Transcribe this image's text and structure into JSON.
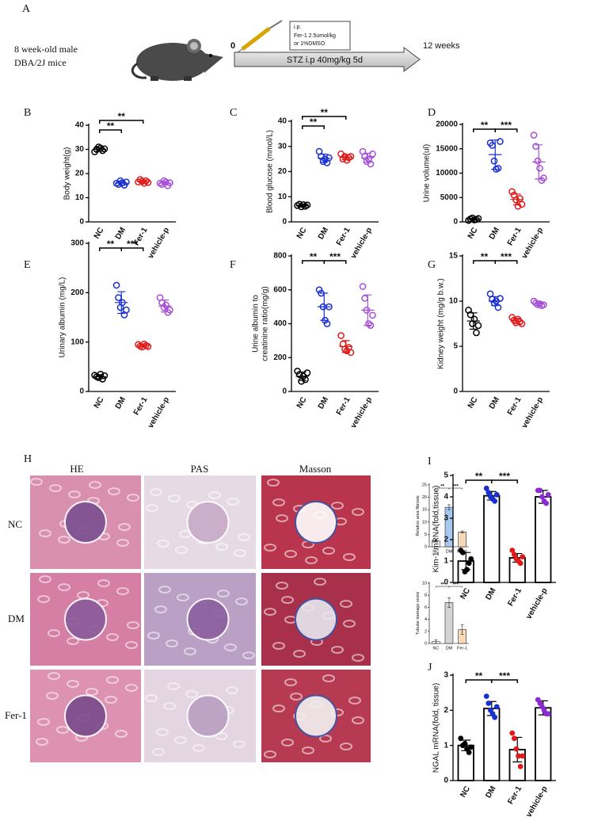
{
  "schematic": {
    "panel": "A",
    "mouse": [
      "8 week-old male",
      "DBA/2J mice"
    ],
    "start": "0",
    "end": "12 weeks",
    "treatment": [
      "i.p.",
      "Fer-1 2.5umol/kg",
      "or 1%DMSO"
    ],
    "stz": "STZ i.p 40mg/kg 5d"
  },
  "histology": {
    "panel": "H",
    "columns": [
      "HE",
      "PAS",
      "Masson"
    ],
    "rows": [
      "NC",
      "DM",
      "Fer-1"
    ]
  },
  "chart_data": [
    {
      "type": "dot",
      "panel": "B",
      "ylabel": "Body weight(g)",
      "categories": [
        "NC",
        "DM",
        "Fer-1",
        "vehicle-p"
      ],
      "colors": [
        "#000000",
        "#1a2fd0",
        "#e01a1a",
        "#a64fd6"
      ],
      "points": [
        [
          29,
          30,
          31,
          30.5,
          29.5,
          30.2
        ],
        [
          16,
          15.5,
          17,
          16.2,
          15.2,
          16.5
        ],
        [
          16.5,
          17.5,
          16.8,
          16,
          17,
          16.3
        ],
        [
          16,
          15.5,
          17,
          16.5,
          15,
          16.2
        ]
      ],
      "values": [
        30,
        16,
        16.7,
        16
      ],
      "errors": [
        0.8,
        0.8,
        0.6,
        0.8
      ],
      "ylim": [
        0,
        40
      ],
      "yticks": [
        0,
        10,
        20,
        30,
        40
      ],
      "annotations": [
        {
          "text": "**",
          "between": [
            "NC",
            "DM"
          ]
        },
        {
          "text": "**",
          "between": [
            "NC",
            "Fer-1"
          ]
        }
      ]
    },
    {
      "type": "dot",
      "panel": "C",
      "ylabel": "Blood glucose (mmol/L)",
      "categories": [
        "NC",
        "DM",
        "Fer-1",
        "vehicle-p"
      ],
      "colors": [
        "#000000",
        "#1a2fd0",
        "#e01a1a",
        "#a64fd6"
      ],
      "points": [
        [
          6.5,
          7,
          6,
          6.8,
          6.2,
          6.7
        ],
        [
          28,
          26,
          24,
          25,
          23.5,
          25.5
        ],
        [
          27,
          25,
          26,
          24.5,
          25.5,
          26
        ],
        [
          28,
          26,
          24,
          25,
          23,
          27
        ]
      ],
      "values": [
        6.5,
        25.3,
        25.7,
        25.5
      ],
      "errors": [
        0.4,
        1.6,
        0.9,
        1.8
      ],
      "ylim": [
        0,
        40
      ],
      "yticks": [
        0,
        10,
        20,
        30,
        40
      ],
      "annotations": [
        {
          "text": "**",
          "between": [
            "NC",
            "DM"
          ]
        },
        {
          "text": "**",
          "between": [
            "NC",
            "Fer-1"
          ]
        }
      ]
    },
    {
      "type": "dot",
      "panel": "D",
      "ylabel": "Urine volume(ul)",
      "categories": [
        "NC",
        "DM",
        "Fer-1",
        "vehicle-p"
      ],
      "colors": [
        "#000000",
        "#1a2fd0",
        "#e01a1a",
        "#a64fd6"
      ],
      "points": [
        [
          300,
          600,
          800,
          400,
          500,
          700
        ],
        [
          16200,
          15700,
          12500,
          10800,
          11000,
          16500
        ],
        [
          6200,
          5500,
          4500,
          3200,
          4800,
          3600
        ],
        [
          17800,
          15500,
          12500,
          11000,
          8500,
          9000
        ]
      ],
      "values": [
        550,
        13800,
        4600,
        12300
      ],
      "errors": [
        190,
        3000,
        1100,
        3500
      ],
      "ylim": [
        0,
        20000
      ],
      "yticks": [
        0,
        5000,
        10000,
        15000,
        20000
      ],
      "annotations": [
        {
          "text": "**",
          "between": [
            "NC",
            "DM"
          ]
        },
        {
          "text": "***",
          "between": [
            "DM",
            "Fer-1"
          ]
        }
      ]
    },
    {
      "type": "dot",
      "panel": "E",
      "ylabel": "Urinary albumin (mg/L)",
      "categories": [
        "NC",
        "DM",
        "Fer-1",
        "vehicle-p"
      ],
      "colors": [
        "#000000",
        "#1a2fd0",
        "#e01a1a",
        "#a64fd6"
      ],
      "points": [
        [
          33,
          30,
          28,
          35,
          25,
          32
        ],
        [
          215,
          190,
          170,
          180,
          155,
          165
        ],
        [
          95,
          92,
          90,
          96,
          93,
          91
        ],
        [
          190,
          180,
          170,
          175,
          160,
          165
        ]
      ],
      "values": [
        30,
        180,
        93,
        173
      ],
      "errors": [
        4,
        22,
        3,
        12
      ],
      "ylim": [
        0,
        300
      ],
      "yticks": [
        0,
        100,
        200,
        300
      ],
      "annotations": [
        {
          "text": "**",
          "between": [
            "NC",
            "DM"
          ]
        },
        {
          "text": "***",
          "between": [
            "DM",
            "Fer-1"
          ]
        }
      ]
    },
    {
      "type": "dot",
      "panel": "F",
      "ylabel": [
        "Urine albumin to",
        "creatinine ratio(mg/g)"
      ],
      "categories": [
        "NC",
        "DM",
        "Fer-1",
        "vehicle-p"
      ],
      "colors": [
        "#000000",
        "#1a2fd0",
        "#e01a1a",
        "#a64fd6"
      ],
      "points": [
        [
          120,
          100,
          60,
          90,
          70,
          110
        ],
        [
          600,
          580,
          500,
          420,
          400,
          500
        ],
        [
          330,
          280,
          250,
          240,
          260,
          230
        ],
        [
          620,
          550,
          480,
          400,
          390,
          450
        ]
      ],
      "values": [
        90,
        500,
        265,
        480
      ],
      "errors": [
        25,
        80,
        35,
        90
      ],
      "ylim": [
        0,
        800
      ],
      "yticks": [
        0,
        200,
        400,
        600,
        800
      ],
      "annotations": [
        {
          "text": "**",
          "between": [
            "NC",
            "DM"
          ]
        },
        {
          "text": "***",
          "between": [
            "DM",
            "Fer-1"
          ]
        }
      ]
    },
    {
      "type": "dot",
      "panel": "G",
      "ylabel": "Kidney weight (mg/g b.w.)",
      "categories": [
        "NC",
        "DM",
        "Fer-1",
        "vehicle-p"
      ],
      "colors": [
        "#000000",
        "#1a2fd0",
        "#e01a1a",
        "#a64fd6"
      ],
      "points": [
        [
          9,
          8.5,
          7.5,
          8,
          6.5,
          7.3
        ],
        [
          10.8,
          10.2,
          9.8,
          10,
          9.3,
          10.3
        ],
        [
          8.2,
          7.9,
          7.6,
          8,
          7.7,
          7.5
        ],
        [
          10,
          9.8,
          9.6,
          9.7,
          9.5,
          9.6
        ]
      ],
      "values": [
        7.8,
        10,
        7.8,
        9.7
      ],
      "errors": [
        0.9,
        0.5,
        0.3,
        0.2
      ],
      "ylim": [
        0,
        15
      ],
      "yticks": [
        0,
        5,
        10,
        15
      ],
      "annotations": [
        {
          "text": "**",
          "between": [
            "NC",
            "DM"
          ]
        },
        {
          "text": "***",
          "between": [
            "DM",
            "Fer-1"
          ]
        }
      ]
    },
    {
      "type": "bar",
      "ylabel": "Relative area fibrosis",
      "categories": [
        "NC",
        "DM",
        "Fer-1"
      ],
      "bar_colors": [
        "#ffffff",
        "#a9c8ef",
        "#f6d9b6"
      ],
      "values": [
        2.5,
        16,
        6
      ],
      "errors": [
        0.2,
        1,
        0.4
      ],
      "ylim": [
        0,
        25
      ],
      "yticks": [
        0,
        5,
        10,
        15,
        20,
        25
      ],
      "annotations": [
        {
          "text": "**",
          "between": [
            "NC",
            "DM"
          ]
        },
        {
          "text": "***",
          "between": [
            "DM",
            "Fer-1"
          ]
        }
      ]
    },
    {
      "type": "bar",
      "ylabel": "Tubular damage score",
      "categories": [
        "NC",
        "DM",
        "Fer-1"
      ],
      "bar_colors": [
        "#ffffff",
        "#d4d4d4",
        "#f6d9b6"
      ],
      "values": [
        0.3,
        6.8,
        2.3
      ],
      "errors": [
        0.3,
        0.8,
        0.8
      ],
      "ylim": [
        0,
        10
      ],
      "yticks": [
        0,
        2,
        4,
        6,
        8,
        10
      ],
      "annotations": [
        {
          "text": "**",
          "between": [
            "NC",
            "DM"
          ]
        },
        {
          "text": "***",
          "between": [
            "DM",
            "Fer-1"
          ]
        }
      ]
    },
    {
      "type": "bar",
      "panel": "I",
      "ylabel": "Kim-1 mRNA(fold,tissue)",
      "categories": [
        "NC",
        "DM",
        "Fer-1",
        "vehicle-p"
      ],
      "colors": [
        "#000000",
        "#1a2fd0",
        "#e01a1a",
        "#8a2bd6"
      ],
      "bar_colors": [
        "#ffffff",
        "#ffffff",
        "#ffffff",
        "#ffffff"
      ],
      "points": [
        [
          1.5,
          1.4,
          0.5,
          0.6,
          0.9,
          1.1
        ],
        [
          4.4,
          4.2,
          4.0,
          3.9,
          3.8,
          4.1
        ],
        [
          1.5,
          1.3,
          1.1,
          1.0,
          0.9,
          1.2
        ],
        [
          4.3,
          4.3,
          4.0,
          3.8,
          3.7,
          4.1
        ]
      ],
      "values": [
        1.0,
        4.05,
        1.15,
        4.0
      ],
      "errors": [
        0.4,
        0.2,
        0.2,
        0.3
      ],
      "ylim": [
        0,
        5
      ],
      "yticks": [
        0,
        1,
        2,
        3,
        4,
        5
      ],
      "annotations": [
        {
          "text": "**",
          "between": [
            "NC",
            "DM"
          ]
        },
        {
          "text": "***",
          "between": [
            "DM",
            "Fer-1"
          ]
        }
      ]
    },
    {
      "type": "bar",
      "panel": "J",
      "ylabel": "NGAL mRNA(fold, tissue)",
      "categories": [
        "NC",
        "DM",
        "Fer-1",
        "vehicle-p"
      ],
      "colors": [
        "#000000",
        "#1a2fd0",
        "#e01a1a",
        "#8a2bd6"
      ],
      "bar_colors": [
        "#ffffff",
        "#ffffff",
        "#ffffff",
        "#ffffff"
      ],
      "points": [
        [
          1.2,
          1.0,
          1.05,
          0.9,
          0.8,
          0.95
        ],
        [
          2.4,
          2.2,
          2.0,
          1.9,
          1.8,
          2.1
        ],
        [
          1.35,
          1.2,
          0.9,
          0.7,
          0.4,
          0.7
        ],
        [
          2.3,
          2.2,
          2.1,
          2.0,
          1.9,
          1.9
        ]
      ],
      "values": [
        1.0,
        2.05,
        0.88,
        2.07
      ],
      "errors": [
        0.15,
        0.2,
        0.35,
        0.2
      ],
      "ylim": [
        0,
        3
      ],
      "yticks": [
        0,
        1,
        2,
        3
      ],
      "annotations": [
        {
          "text": "**",
          "between": [
            "NC",
            "DM"
          ]
        },
        {
          "text": "***",
          "between": [
            "DM",
            "Fer-1"
          ]
        }
      ]
    }
  ]
}
